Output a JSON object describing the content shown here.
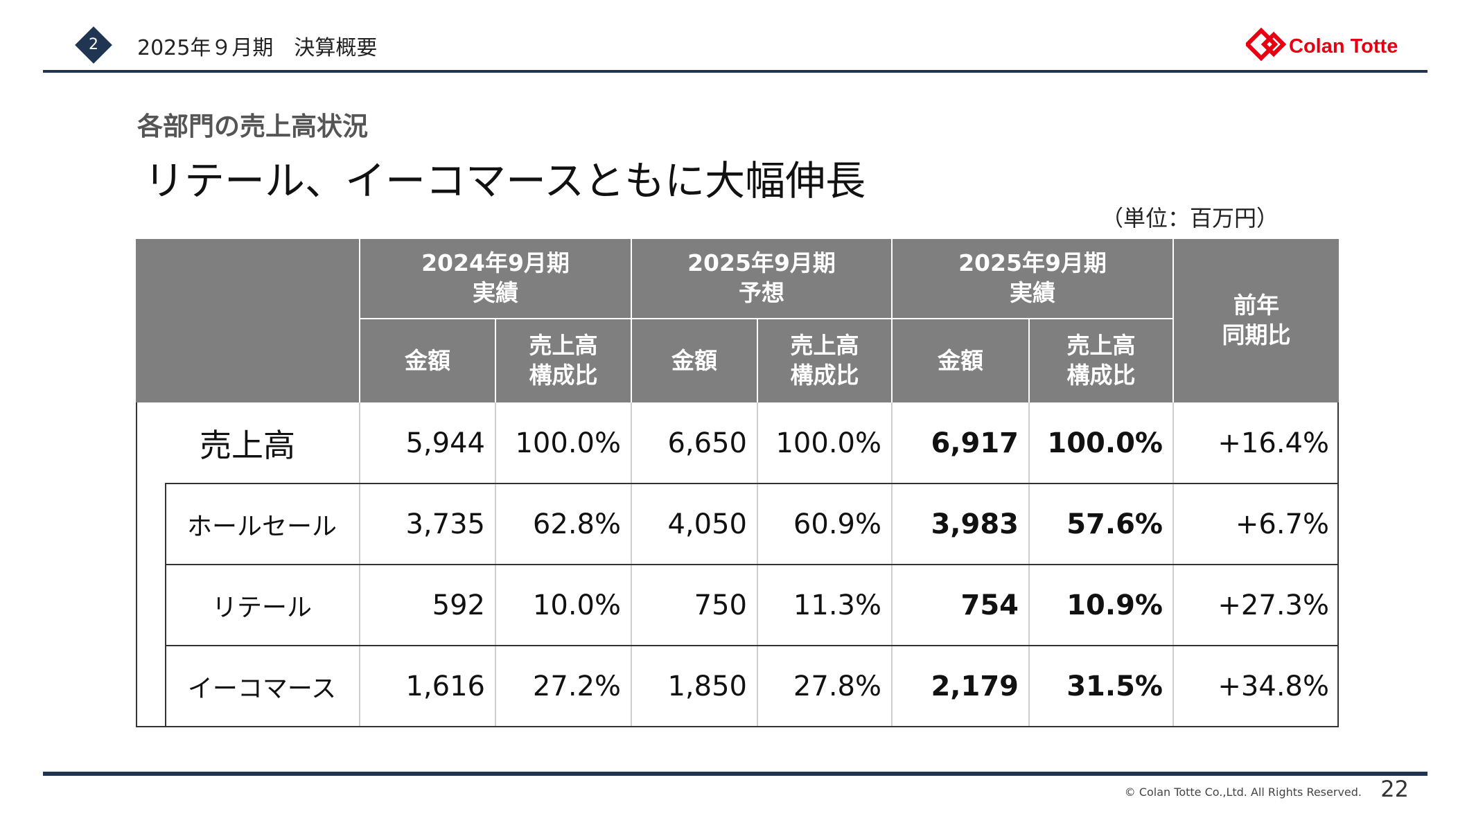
{
  "header": {
    "section_number": "2",
    "title": "2025年９月期　決算概要",
    "logo_text": "Colan Totte"
  },
  "section_title": "各部門の売上高状況",
  "headline": "リテール、イーコマースともに大幅伸長",
  "unit_label": "（単位：百万円）",
  "table": {
    "groups": [
      {
        "period": "2024年9月期",
        "kind": "実績"
      },
      {
        "period": "2025年9月期",
        "kind": "予想"
      },
      {
        "period": "2025年9月期",
        "kind": "実績"
      }
    ],
    "sub_amount": "金額",
    "sub_ratio_1": "売上高",
    "sub_ratio_2": "構成比",
    "yoy_1": "前年",
    "yoy_2": "同期比",
    "rows": [
      {
        "label": "売上高",
        "a2024": "5,944",
        "r2024": "100.0%",
        "a2025f": "6,650",
        "r2025f": "100.0%",
        "a2025": "6,917",
        "r2025": "100.0%",
        "yoy": "+16.4%"
      },
      {
        "label": "ホールセール",
        "a2024": "3,735",
        "r2024": "62.8%",
        "a2025f": "4,050",
        "r2025f": "60.9%",
        "a2025": "3,983",
        "r2025": "57.6%",
        "yoy": "+6.7%"
      },
      {
        "label": "リテール",
        "a2024": "592",
        "r2024": "10.0%",
        "a2025f": "750",
        "r2025f": "11.3%",
        "a2025": "754",
        "r2025": "10.9%",
        "yoy": "+27.3%"
      },
      {
        "label": "イーコマース",
        "a2024": "1,616",
        "r2024": "27.2%",
        "a2025f": "1,850",
        "r2025f": "27.8%",
        "a2025": "2,179",
        "r2025": "31.5%",
        "yoy": "+34.8%"
      }
    ]
  },
  "footer": {
    "copyright": "© Colan Totte Co.,Ltd. All Rights Reserved.",
    "page_number": "22"
  },
  "colors": {
    "navy": "#1f3552",
    "header_gray": "#7f7f7f",
    "logo_red": "#e60012"
  }
}
